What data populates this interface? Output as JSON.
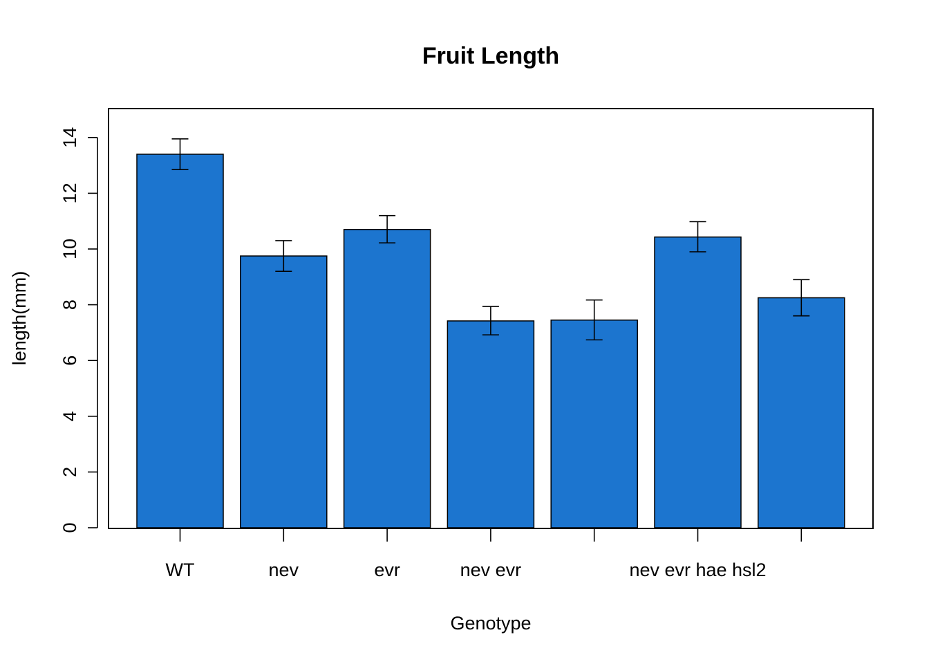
{
  "chart_data": {
    "type": "bar",
    "title": "Fruit Length",
    "xlabel": "Genotype",
    "ylabel": "length(mm)",
    "ylim": [
      0,
      15
    ],
    "yticks": [
      0,
      2,
      4,
      6,
      8,
      10,
      12,
      14
    ],
    "bar_color": "#1c75cf",
    "categories": [
      "WT",
      "nev",
      "evr",
      "nev evr",
      "",
      "nev evr hae hsl2",
      ""
    ],
    "values": [
      13.4,
      9.75,
      10.7,
      7.42,
      7.45,
      10.43,
      8.25
    ],
    "error_low": [
      12.85,
      9.2,
      10.22,
      6.92,
      6.74,
      9.9,
      7.6
    ],
    "error_high": [
      13.95,
      10.3,
      11.2,
      7.94,
      8.17,
      10.98,
      8.9
    ],
    "grid": false,
    "legend": "none"
  }
}
